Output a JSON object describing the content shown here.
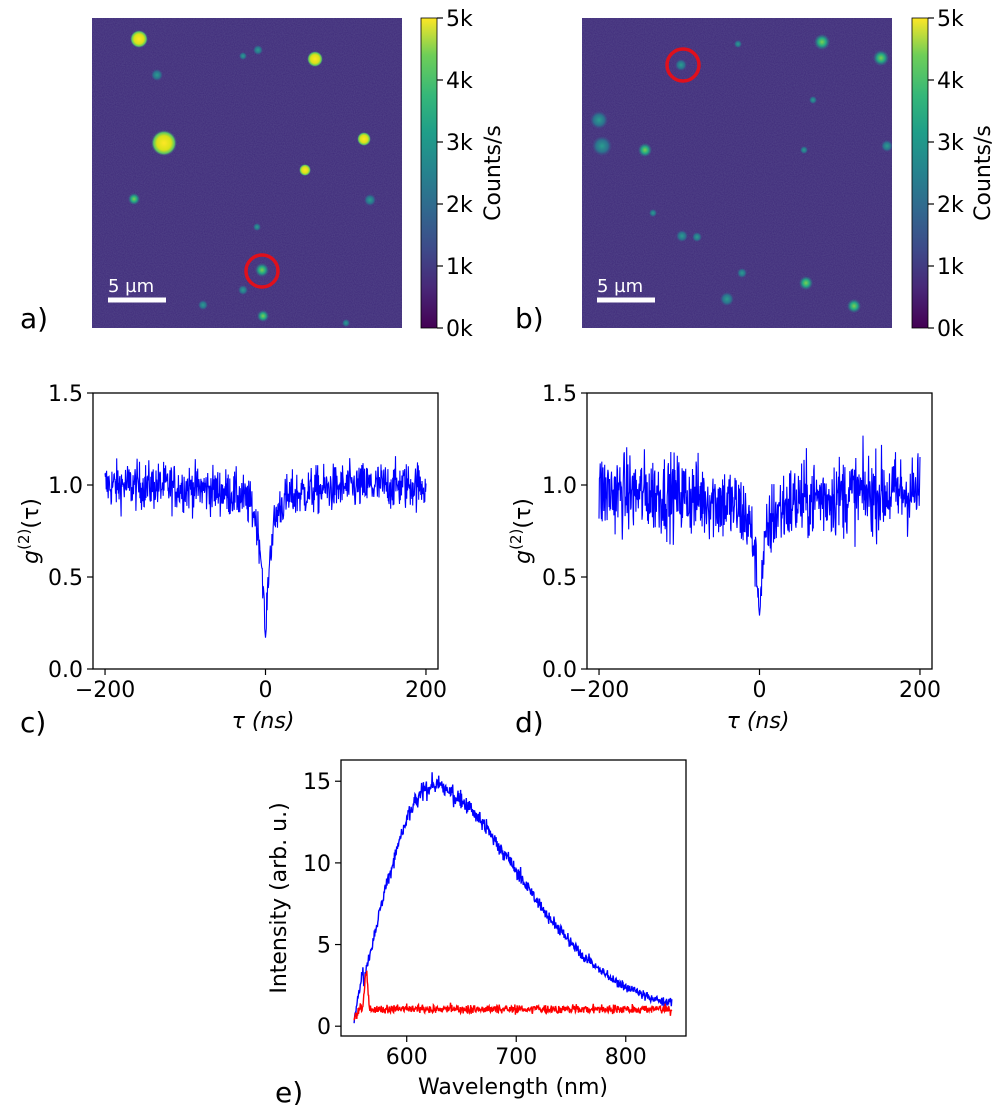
{
  "chart_data": [
    {
      "panel": "a)",
      "type": "heatmap",
      "scale_bar_label": "5 µm",
      "colorbar": {
        "label": "Counts/s",
        "ticks": [
          "0k",
          "1k",
          "2k",
          "3k",
          "4k",
          "5k"
        ],
        "range": [
          0,
          5000
        ]
      },
      "circle_marker_color": "#e0101c",
      "note": "fluorescence map of emitters; circled emitter measured in c)"
    },
    {
      "panel": "b)",
      "type": "heatmap",
      "scale_bar_label": "5 µm",
      "colorbar": {
        "label": "Counts/s",
        "ticks": [
          "0k",
          "1k",
          "2k",
          "3k",
          "4k",
          "5k"
        ],
        "range": [
          0,
          5000
        ]
      },
      "circle_marker_color": "#e0101c",
      "note": "fluorescence map of emitters; circled emitter measured in d)"
    },
    {
      "panel": "c)",
      "type": "line",
      "series": [
        {
          "name": "g2",
          "color": "#0000ff",
          "baseline": 1.0,
          "noise": 0.13,
          "dip_min": 0.17,
          "dip_width_ns": 18,
          "broad_dip": 0.12
        }
      ],
      "x_ticks": [
        -200,
        0,
        200
      ],
      "y_ticks": [
        "0.0",
        "0.5",
        "1.0",
        "1.5"
      ],
      "xlim": [
        -215,
        215
      ],
      "ylim": [
        0,
        1.5
      ],
      "xlabel": "τ (ns)",
      "ylabel": "g(2)(τ)"
    },
    {
      "panel": "d)",
      "type": "line",
      "series": [
        {
          "name": "g2",
          "color": "#0000ff",
          "baseline": 0.96,
          "noise": 0.22,
          "dip_min": 0.29,
          "dip_width_ns": 18,
          "broad_dip": 0.15
        }
      ],
      "x_ticks": [
        -200,
        0,
        200
      ],
      "y_ticks": [
        "0.0",
        "0.5",
        "1.0",
        "1.5"
      ],
      "xlim": [
        -215,
        215
      ],
      "ylim": [
        0,
        1.5
      ],
      "xlabel": "τ (ns)",
      "ylabel": "g(2)(τ)"
    },
    {
      "panel": "e)",
      "type": "line",
      "series": [
        {
          "name": "blue spectrum",
          "color": "#0000ff",
          "peak_nm": 625,
          "peak_value": 14.7,
          "start_nm": 552,
          "end_nm": 842,
          "end_value": 0.8
        },
        {
          "name": "red spectrum",
          "color": "#ff0000",
          "level": 1.05,
          "spike_nm": 563,
          "spike_value": 3.3,
          "start_nm": 552,
          "end_nm": 842
        }
      ],
      "x_ticks": [
        "600",
        "700",
        "800"
      ],
      "y_ticks": [
        "0",
        "5",
        "10",
        "15"
      ],
      "xlim": [
        540,
        855
      ],
      "ylim": [
        -0.6,
        16.3
      ],
      "xlabel": "Wavelength (nm)",
      "ylabel": "Intensity (arb. u.)"
    }
  ],
  "labels": {
    "panel_a": "a)",
    "panel_b": "b)",
    "panel_c": "c)",
    "panel_d": "d)",
    "panel_e": "e)",
    "tau": "τ",
    "tau_unit": "(ns)",
    "g_symbol": "g",
    "g_superscript": "(2)",
    "g_arg": "(τ)"
  },
  "colors": {
    "map_background": "#3f2a7a",
    "viridis_low": "#440154",
    "viridis_high": "#fde725",
    "trace_blue": "#0000ff",
    "trace_red": "#ff0000"
  }
}
